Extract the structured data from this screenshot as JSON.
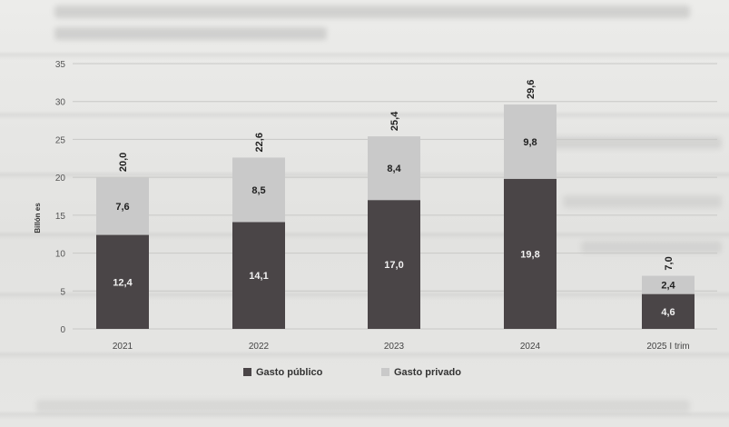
{
  "colors": {
    "publico": "#4a4547",
    "privado": "#c9c9c9",
    "grid": "#c8c8c6",
    "axis_text": "#555555",
    "label_dark": "#1f1f1f",
    "label_light": "#f2f2f2"
  },
  "chart_data": {
    "type": "bar",
    "stacked": true,
    "categories": [
      "2021",
      "2022",
      "2023",
      "2024",
      "2025 I trim"
    ],
    "series": [
      {
        "name": "Gasto público",
        "values": [
          12.4,
          14.1,
          17.0,
          19.8,
          4.6
        ],
        "labels": [
          "12,4",
          "14,1",
          "17,0",
          "19,8",
          "4,6"
        ]
      },
      {
        "name": "Gasto privado",
        "values": [
          7.6,
          8.5,
          8.4,
          9.8,
          2.4
        ],
        "labels": [
          "7,6",
          "8,5",
          "8,4",
          "9,8",
          "2,4"
        ]
      }
    ],
    "totals": [
      20.0,
      22.6,
      25.4,
      29.6,
      7.0
    ],
    "total_labels": [
      "20,0",
      "22,6",
      "25,4",
      "29,6",
      "7,0"
    ],
    "ylabel": "Billón es",
    "ylim": [
      0,
      35
    ],
    "yticks": [
      0,
      5,
      10,
      15,
      20,
      25,
      30,
      35
    ],
    "grid": true,
    "legend_position": "bottom-center"
  }
}
